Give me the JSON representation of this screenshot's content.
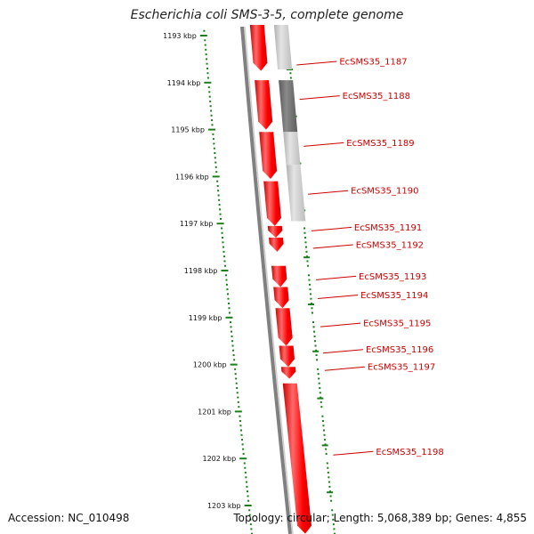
{
  "title": "Escherichia coli SMS-3-5, complete genome",
  "footer": {
    "accession": "Accession: NC_010498",
    "summary": "Topology: circular; Length: 5,068,389 bp; Genes: 4,855"
  },
  "colors": {
    "forward_gene": "#ff0000",
    "backbone": "#808080",
    "tick": "#1a7f1a",
    "gene_label": "#cc0000",
    "reverse_light": "#c8c8c8",
    "reverse_dark": "#6e6e6e"
  },
  "ticks": [
    {
      "label": "1193 kbp",
      "kbp": 1193
    },
    {
      "label": "1194 kbp",
      "kbp": 1194
    },
    {
      "label": "1195 kbp",
      "kbp": 1195
    },
    {
      "label": "1196 kbp",
      "kbp": 1196
    },
    {
      "label": "1197 kbp",
      "kbp": 1197
    },
    {
      "label": "1198 kbp",
      "kbp": 1198
    },
    {
      "label": "1199 kbp",
      "kbp": 1199
    },
    {
      "label": "1200 kbp",
      "kbp": 1200
    },
    {
      "label": "1201 kbp",
      "kbp": 1201
    },
    {
      "label": "1202 kbp",
      "kbp": 1202
    },
    {
      "label": "1203 kbp",
      "kbp": 1203
    }
  ],
  "forward_genes": [
    {
      "start": 1192.6,
      "end": 1193.75
    },
    {
      "start": 1193.95,
      "end": 1195.0
    },
    {
      "start": 1195.05,
      "end": 1196.05
    },
    {
      "start": 1196.1,
      "end": 1197.05
    },
    {
      "start": 1197.05,
      "end": 1197.3
    },
    {
      "start": 1197.3,
      "end": 1197.6
    },
    {
      "start": 1197.9,
      "end": 1198.35
    },
    {
      "start": 1198.35,
      "end": 1198.8
    },
    {
      "start": 1198.8,
      "end": 1199.6
    },
    {
      "start": 1199.6,
      "end": 1200.05
    },
    {
      "start": 1200.05,
      "end": 1200.3
    },
    {
      "start": 1200.4,
      "end": 1203.6
    }
  ],
  "reverse_genes": [
    {
      "start": 1192.6,
      "end": 1193.72,
      "shade": "light"
    },
    {
      "start": 1193.95,
      "end": 1195.05,
      "shade": "dark"
    },
    {
      "start": 1195.05,
      "end": 1195.75,
      "shade": "light"
    },
    {
      "start": 1195.75,
      "end": 1196.95,
      "shade": "light"
    }
  ],
  "gene_labels": [
    {
      "text": "EcSMS35_1187",
      "kbp": 1193.55
    },
    {
      "text": "EcSMS35_1188",
      "kbp": 1194.28
    },
    {
      "text": "EcSMS35_1189",
      "kbp": 1195.28
    },
    {
      "text": "EcSMS35_1190",
      "kbp": 1196.3
    },
    {
      "text": "EcSMS35_1191",
      "kbp": 1197.08
    },
    {
      "text": "EcSMS35_1192",
      "kbp": 1197.45
    },
    {
      "text": "EcSMS35_1193",
      "kbp": 1198.12
    },
    {
      "text": "EcSMS35_1194",
      "kbp": 1198.52
    },
    {
      "text": "EcSMS35_1195",
      "kbp": 1199.12
    },
    {
      "text": "EcSMS35_1196",
      "kbp": 1199.68
    },
    {
      "text": "EcSMS35_1197",
      "kbp": 1200.05
    },
    {
      "text": "EcSMS35_1198",
      "kbp": 1201.85
    }
  ]
}
